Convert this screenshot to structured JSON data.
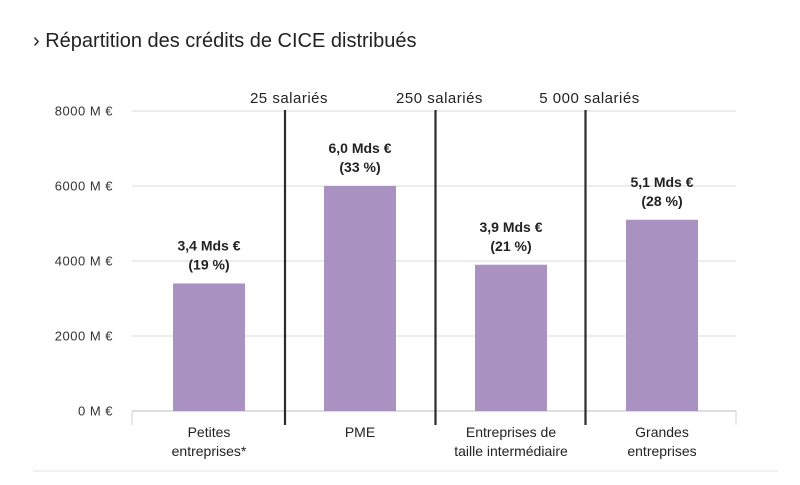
{
  "title": "› Répartition des crédits de CICE distribués",
  "colors": {
    "bar": "#a991c2",
    "grid": "#d9d9d9",
    "divider": "#2b2b2b",
    "text": "#222222"
  },
  "chart_data": {
    "type": "bar",
    "title": "› Répartition des crédits de CICE distribués",
    "unit": "M €",
    "ylim": [
      0,
      8000
    ],
    "yticks": [
      0,
      2000,
      4000,
      6000,
      8000
    ],
    "ytick_labels": [
      "0 M €",
      "2000 M €",
      "4000 M €",
      "6000 M €",
      "8000 M €"
    ],
    "categories": [
      {
        "lines": [
          "Petites",
          "entreprises*"
        ]
      },
      {
        "lines": [
          "PME"
        ]
      },
      {
        "lines": [
          "Entreprises de",
          "taille intermédiaire"
        ]
      },
      {
        "lines": [
          "Grandes",
          "entreprises"
        ]
      }
    ],
    "values": [
      3400,
      6000,
      3900,
      5100
    ],
    "data_labels": [
      [
        "3,4 Mds €",
        "(19 %)"
      ],
      [
        "6,0 Mds €",
        "(33 %)"
      ],
      [
        "3,9 Mds €",
        "(21 %)"
      ],
      [
        "5,1 Mds €",
        "(28 %)"
      ]
    ],
    "thresholds": [
      "25 salariés",
      "250 salariés",
      "5 000 salariés"
    ],
    "grid": true
  }
}
